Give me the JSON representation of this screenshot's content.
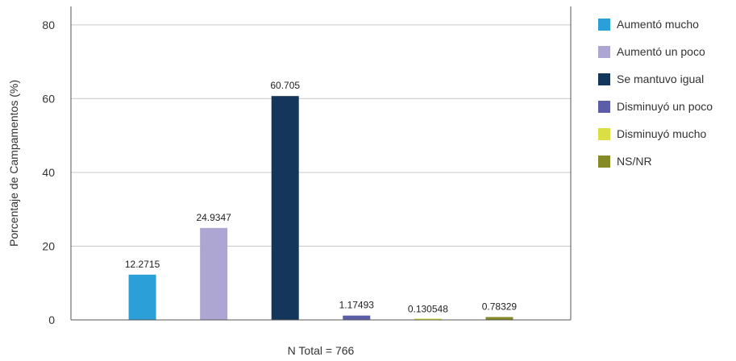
{
  "chart_data": {
    "type": "bar",
    "categories": [
      "Aumentó mucho",
      "Aumentó un poco",
      "Se mantuvo igual",
      "Disminuyó un poco",
      "Disminuyó mucho",
      "NS/NR"
    ],
    "values": [
      12.2715,
      24.9347,
      60.705,
      1.17493,
      0.130548,
      0.78329
    ],
    "data_labels": [
      "12.2715",
      "24.9347",
      "60.705",
      "1.17493",
      "0.130548",
      "0.78329"
    ],
    "colors": [
      "#2a9fd8",
      "#aea6d2",
      "#14365a",
      "#5b5ea6",
      "#d9df45",
      "#868a26"
    ],
    "ylabel": "Porcentaje de Campamentos (%)",
    "xlabel": "N Total = 766",
    "yticks": [
      0,
      20,
      40,
      60,
      80
    ],
    "ylim": [
      0,
      85
    ],
    "grid": true,
    "legend_position": "right"
  }
}
